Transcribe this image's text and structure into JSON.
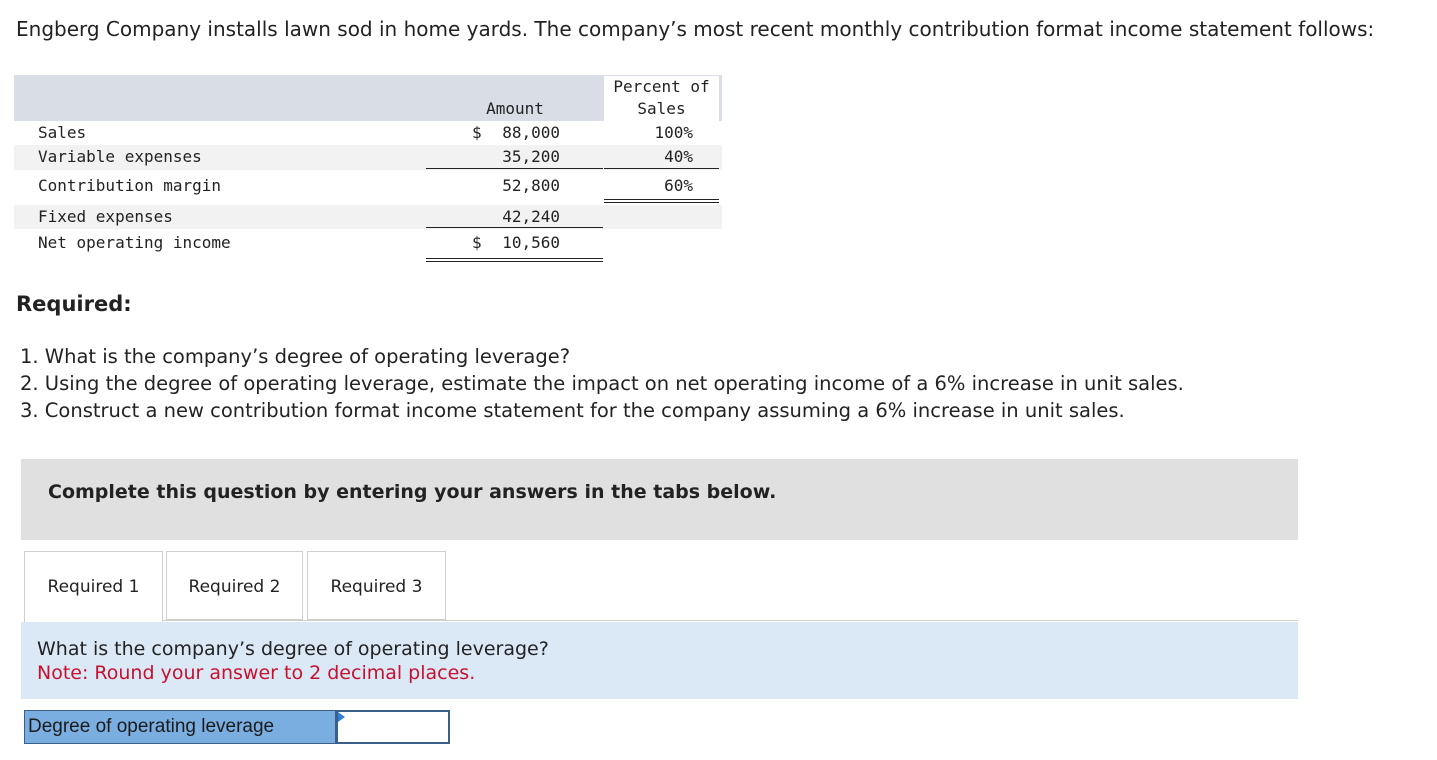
{
  "intro": "Engberg Company installs lawn sod in home yards. The company’s most recent monthly contribution format income statement follows:",
  "statement": {
    "col_amount": "Amount",
    "col_percent_line1": "Percent of",
    "col_percent_line2": "Sales",
    "rows": [
      {
        "label": "Sales",
        "dollar": "$",
        "amount": "88,000",
        "percent": "100%"
      },
      {
        "label": "Variable expenses",
        "dollar": "",
        "amount": "35,200",
        "percent": "40%"
      },
      {
        "label": "Contribution margin",
        "dollar": "",
        "amount": "52,800",
        "percent": "60%"
      },
      {
        "label": "Fixed expenses",
        "dollar": "",
        "amount": "42,240",
        "percent": ""
      },
      {
        "label": "Net operating income",
        "dollar": "$",
        "amount": "10,560",
        "percent": ""
      }
    ]
  },
  "required_heading": "Required:",
  "questions": [
    "1. What is the company’s degree of operating leverage?",
    "2. Using the degree of operating leverage, estimate the impact on net operating income of a 6% increase in unit sales.",
    "3. Construct a new contribution format income statement for the company assuming a 6% increase in unit sales."
  ],
  "instruction": "Complete this question by entering your answers in the tabs below.",
  "tabs": [
    {
      "label": "Required 1",
      "active": true
    },
    {
      "label": "Required 2",
      "active": false
    },
    {
      "label": "Required 3",
      "active": false
    }
  ],
  "panel": {
    "question": "What is the company’s degree of operating leverage?",
    "note": "Note: Round your answer to 2 decimal places."
  },
  "answer": {
    "label": "Degree of operating leverage",
    "value": ""
  },
  "colors": {
    "header_bg": "#d9dde6",
    "instruction_bg": "#e0e0e0",
    "panel_bg": "#dbe9f7",
    "note_red": "#c8102e",
    "label_blue": "#7aaee0"
  }
}
